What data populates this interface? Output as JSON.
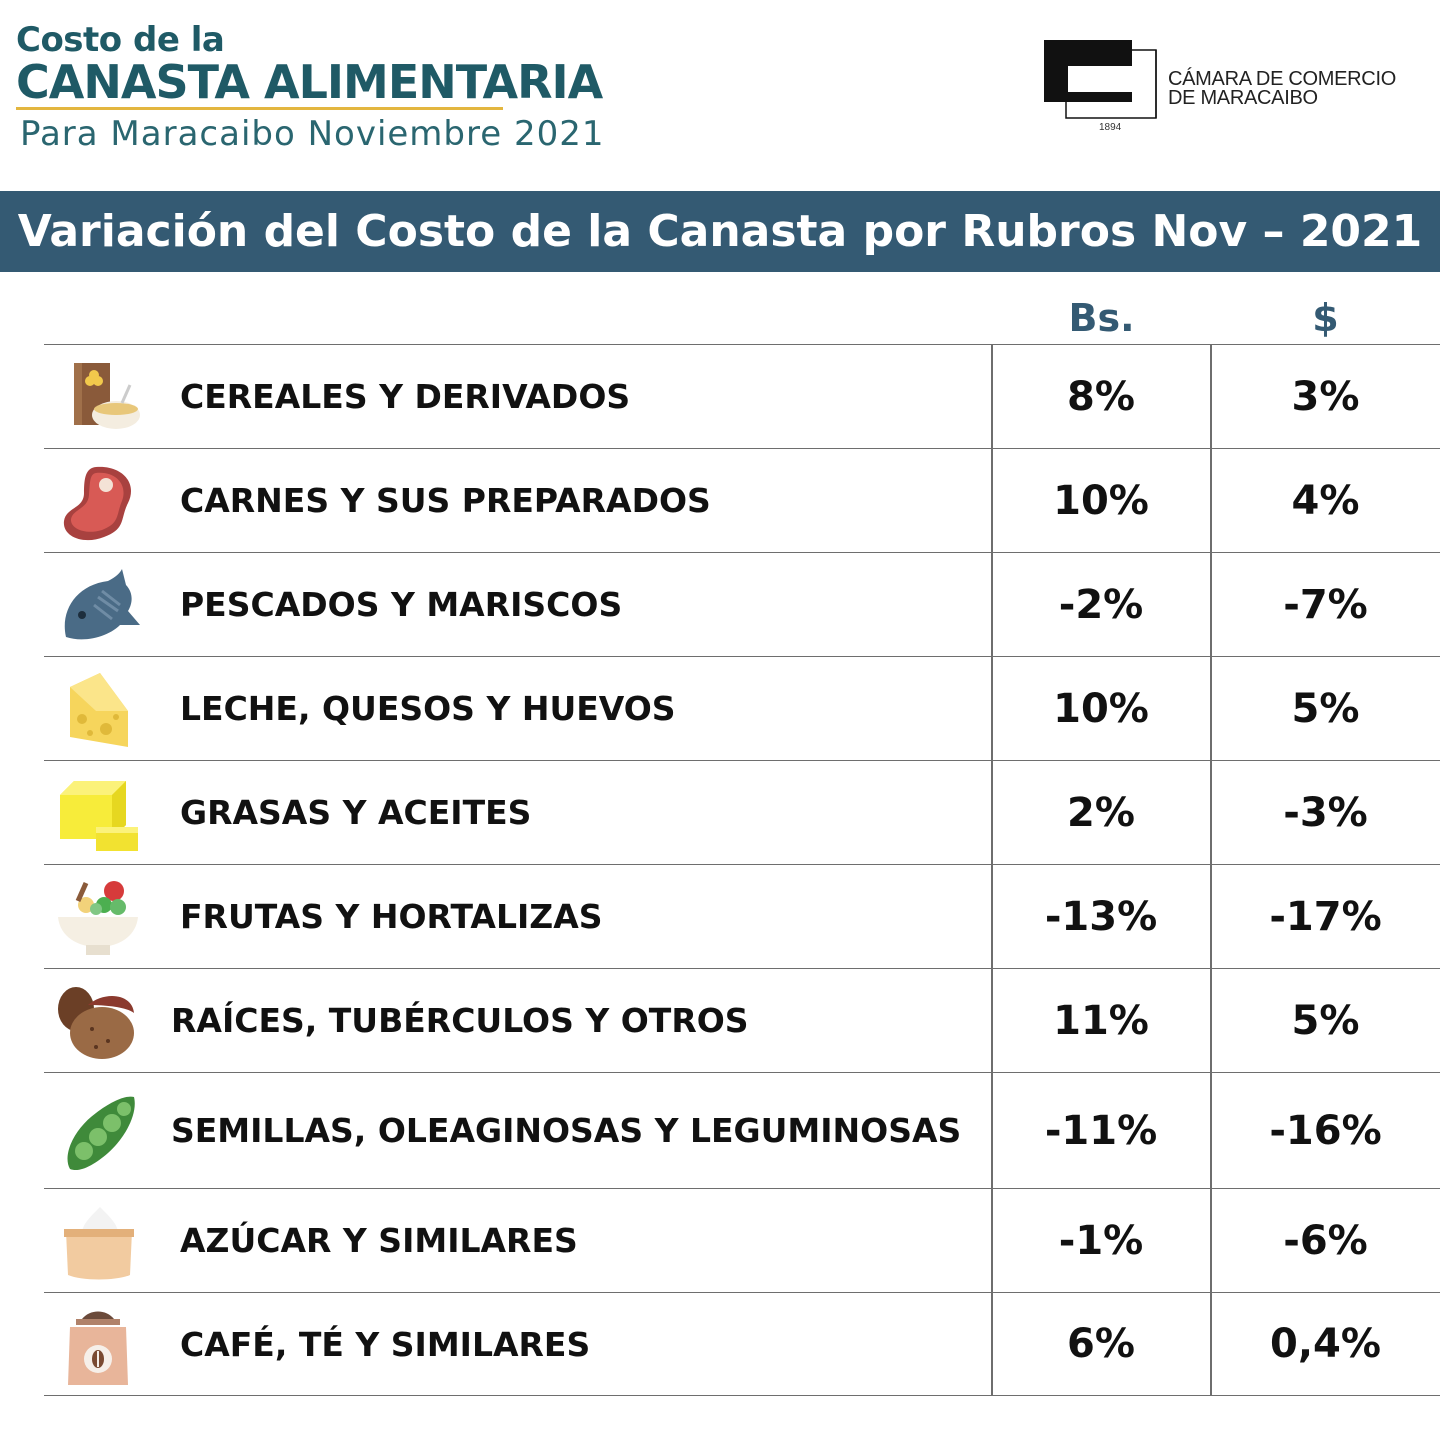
{
  "header": {
    "line1": "Costo de la",
    "line2": "CANASTA ALIMENTARIA",
    "subtitle": "Para Maracaibo Noviembre 2021"
  },
  "logo": {
    "name_line1": "CÁMARA DE COMERCIO",
    "name_line2": "DE MARACAIBO",
    "year": "1894"
  },
  "banner": {
    "title": "Variación del Costo de la Canasta por Rubros Nov – 2021"
  },
  "columns": {
    "bs": "Bs.",
    "usd": "$"
  },
  "colors": {
    "banner": "#345a73",
    "title": "#1f5a66",
    "accent": "#e3b63f"
  },
  "rows": [
    {
      "icon": "cereal-box-icon",
      "label": "CEREALES Y DERIVADOS",
      "bs": "8%",
      "usd": "3%"
    },
    {
      "icon": "steak-icon",
      "label": "CARNES Y SUS PREPARADOS",
      "bs": "10%",
      "usd": "4%"
    },
    {
      "icon": "fish-icon",
      "label": "PESCADOS Y MARISCOS",
      "bs": "-2%",
      "usd": "-7%"
    },
    {
      "icon": "cheese-icon",
      "label": "LECHE, QUESOS Y HUEVOS",
      "bs": "10%",
      "usd": "5%"
    },
    {
      "icon": "butter-icon",
      "label": "GRASAS Y ACEITES",
      "bs": "2%",
      "usd": "-3%"
    },
    {
      "icon": "salad-bowl-icon",
      "label": "FRUTAS Y HORTALIZAS",
      "bs": "-13%",
      "usd": "-17%"
    },
    {
      "icon": "potato-icon",
      "label": "RAÍCES, TUBÉRCULOS Y OTROS",
      "bs": "11%",
      "usd": "5%"
    },
    {
      "icon": "pea-pod-icon",
      "label": "SEMILLAS, OLEAGINOSAS Y LEGUMINOSAS",
      "bs": "-11%",
      "usd": "-16%"
    },
    {
      "icon": "sugar-sack-icon",
      "label": "AZÚCAR Y SIMILARES",
      "bs": "-1%",
      "usd": "-6%"
    },
    {
      "icon": "coffee-bag-icon",
      "label": "CAFÉ, TÉ Y SIMILARES",
      "bs": "6%",
      "usd": "0,4%"
    }
  ]
}
